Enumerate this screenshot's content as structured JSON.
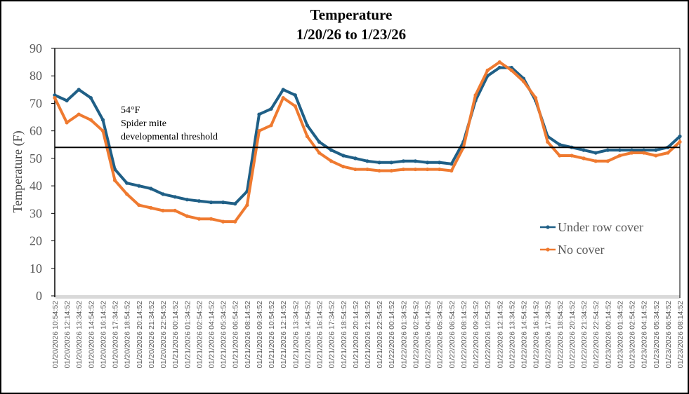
{
  "chart_data": {
    "type": "line",
    "title": [
      "Temperature",
      "1/20/26 to 1/23/26"
    ],
    "xlabel": "",
    "ylabel": "Temperature (F)",
    "ylim": [
      0,
      90
    ],
    "yticks": [
      0,
      10,
      20,
      30,
      40,
      50,
      60,
      70,
      80,
      90
    ],
    "grid": false,
    "legend": "right",
    "categories": [
      "01/20/2026 10:54:52",
      "01/20/2026 12:14:52",
      "01/20/2026 13:34:52",
      "01/20/2026 14:54:52",
      "01/20/2026 16:14:52",
      "01/20/2026 17:34:52",
      "01/20/2026 18:54:52",
      "01/20/2026 20:14:52",
      "01/20/2026 21:34:52",
      "01/20/2026 22:54:52",
      "01/21/2026 00:14:52",
      "01/21/2026 01:34:52",
      "01/21/2026 02:54:52",
      "01/21/2026 04:14:52",
      "01/21/2026 05:34:52",
      "01/21/2026 06:54:52",
      "01/21/2026 08:14:52",
      "01/21/2026 09:34:52",
      "01/21/2026 10:54:52",
      "01/21/2026 12:14:52",
      "01/21/2026 13:34:52",
      "01/21/2026 14:54:52",
      "01/21/2026 16:14:52",
      "01/21/2026 17:34:52",
      "01/21/2026 18:54:52",
      "01/21/2026 20:14:52",
      "01/21/2026 21:34:52",
      "01/21/2026 22:54:52",
      "01/22/2026 00:14:52",
      "01/22/2026 01:34:52",
      "01/22/2026 02:54:52",
      "01/22/2026 04:14:52",
      "01/22/2026 05:34:52",
      "01/22/2026 06:54:52",
      "01/22/2026 08:14:52",
      "01/22/2026 09:34:52",
      "01/22/2026 10:54:52",
      "01/22/2026 12:14:52",
      "01/22/2026 13:34:52",
      "01/22/2026 14:54:52",
      "01/22/2026 16:14:52",
      "01/22/2026 17:34:52",
      "01/22/2026 18:54:52",
      "01/22/2026 20:14:52",
      "01/22/2026 21:34:52",
      "01/22/2026 22:54:52",
      "01/23/2026 00:14:52",
      "01/23/2026 01:34:52",
      "01/23/2026 02:54:52",
      "01/23/2026 04:14:52",
      "01/23/2026 05:34:52",
      "01/23/2026 06:54:52",
      "01/23/2026 08:14:52"
    ],
    "series": [
      {
        "name": "Under row cover",
        "color": "#1f5f86",
        "values": [
          73,
          71,
          75,
          72,
          64,
          46,
          41,
          40,
          39,
          37,
          36,
          35,
          34.5,
          34,
          34,
          33.5,
          38,
          66,
          68,
          75,
          73,
          62,
          56,
          53,
          51,
          50,
          49,
          48.5,
          48.5,
          49,
          49,
          48.5,
          48.5,
          48,
          56,
          71,
          80,
          83,
          83,
          79,
          71,
          58,
          55,
          54,
          53,
          52,
          53,
          53,
          53,
          53,
          53,
          54,
          58
        ]
      },
      {
        "name": "No cover",
        "color": "#ef7a30",
        "values": [
          72,
          63,
          66,
          64,
          60,
          42,
          37,
          33,
          32,
          31,
          31,
          29,
          28,
          28,
          27,
          27,
          33,
          60,
          62,
          72,
          69,
          58,
          52,
          49,
          47,
          46,
          46,
          45.5,
          45.5,
          46,
          46,
          46,
          46,
          45.5,
          54,
          73,
          82,
          85,
          82,
          78,
          72,
          56,
          51,
          51,
          50,
          49,
          49,
          51,
          52,
          52,
          51,
          52,
          56
        ]
      }
    ],
    "reference_line": {
      "value": 54,
      "label": [
        "54°F",
        "Spider mite",
        "developmental threshold"
      ],
      "color": "#000000"
    }
  }
}
